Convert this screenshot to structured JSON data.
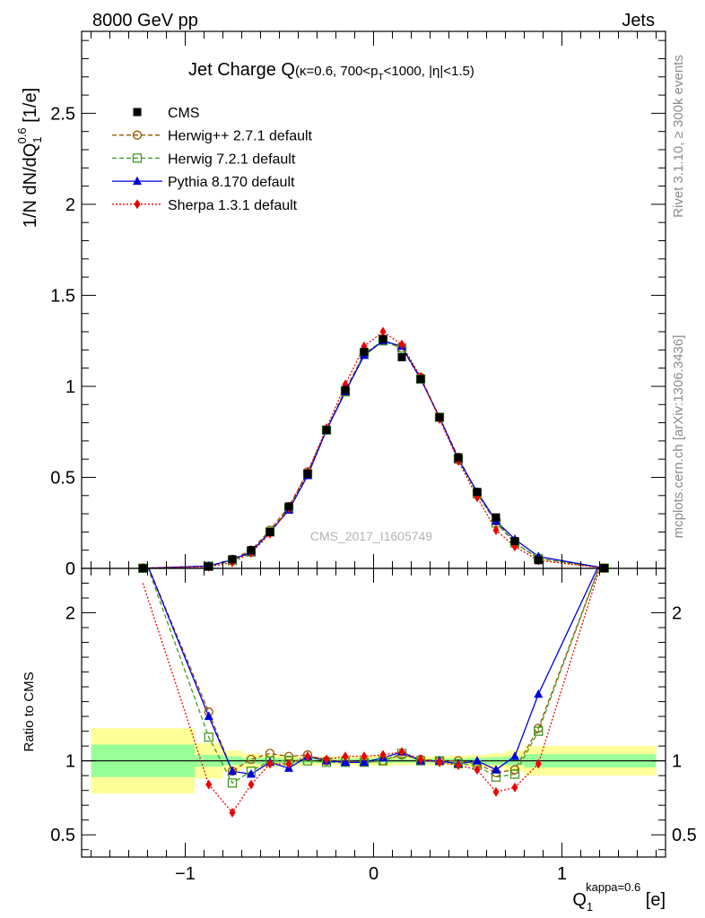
{
  "header": {
    "left": "8000 GeV pp",
    "right": "Jets"
  },
  "side_labels": {
    "rivet": "Rivet 3.1.10, ≥ 300k events",
    "mcplots": "mcplots.cern.ch [arXiv:1306.3436]"
  },
  "watermark": "CMS_2017_I1605749",
  "colors": {
    "cms": "#000000",
    "herwigpp": "#995500",
    "herwig7": "#449922",
    "pythia": "#0000dd",
    "sherpa": "#ee0000",
    "band_inner": "#99ff99",
    "band_outer": "#ffff99"
  },
  "chart_data": [
    {
      "type": "line",
      "panel": "main",
      "title": {
        "main": "Jet Charge Q",
        "sub": "(κ=0.6, 700<p",
        "sub_sub": "T",
        "sub_end": "<1000, |η|<1.5)"
      },
      "ylabel": {
        "a": "1/N dN/dQ",
        "sub": "1",
        "sup": "0.6",
        "b": " [1/e]"
      },
      "xlim": [
        -1.55,
        1.55
      ],
      "ylim": [
        0,
        2.95
      ],
      "yticks": [
        "0",
        "0.5",
        "1",
        "1.5",
        "2",
        "2.5"
      ],
      "x": [
        -1.225,
        -0.875,
        -0.75,
        -0.65,
        -0.55,
        -0.45,
        -0.35,
        -0.25,
        -0.15,
        -0.05,
        0.05,
        0.15,
        0.25,
        0.35,
        0.45,
        0.55,
        0.65,
        0.75,
        0.875,
        1.225
      ],
      "legend": [
        {
          "name": "CMS",
          "key": "cms"
        },
        {
          "name": "Herwig++ 2.7.1 default",
          "key": "herwigpp"
        },
        {
          "name": "Herwig 7.2.1 default",
          "key": "herwig7"
        },
        {
          "name": "Pythia 8.170 default",
          "key": "pythia"
        },
        {
          "name": "Sherpa 1.3.1 default",
          "key": "sherpa"
        }
      ],
      "series": [
        {
          "name": "CMS",
          "key": "cms",
          "marker": "square",
          "values": [
            0.0008,
            0.01,
            0.05,
            0.1,
            0.2,
            0.34,
            0.52,
            0.76,
            0.98,
            1.19,
            1.26,
            1.16,
            1.04,
            0.83,
            0.61,
            0.42,
            0.28,
            0.15,
            0.045,
            0.0015
          ]
        },
        {
          "name": "Herwig++ 2.7.1 default",
          "key": "herwigpp",
          "marker": "circle-open",
          "dash": "5,3",
          "values": [
            0.0009,
            0.013,
            0.05,
            0.1,
            0.21,
            0.34,
            0.53,
            0.76,
            0.98,
            1.18,
            1.25,
            1.21,
            1.05,
            0.83,
            0.61,
            0.41,
            0.26,
            0.14,
            0.055,
            0.0016
          ]
        },
        {
          "name": "Herwig 7.2.1 default",
          "key": "herwig7",
          "marker": "square-open",
          "dash": "5,3",
          "values": [
            0.0008,
            0.012,
            0.043,
            0.09,
            0.2,
            0.33,
            0.52,
            0.76,
            0.97,
            1.18,
            1.25,
            1.21,
            1.04,
            0.83,
            0.6,
            0.41,
            0.25,
            0.14,
            0.054,
            0.0015
          ]
        },
        {
          "name": "Pythia 8.170 default",
          "key": "pythia",
          "marker": "triangle",
          "values": [
            0.0006,
            0.013,
            0.047,
            0.091,
            0.2,
            0.32,
            0.51,
            0.76,
            0.97,
            1.17,
            1.25,
            1.22,
            1.04,
            0.83,
            0.6,
            0.42,
            0.26,
            0.16,
            0.065,
            0.0015
          ]
        },
        {
          "name": "Sherpa 1.3.1 default",
          "key": "sherpa",
          "marker": "diamond",
          "dash": "2,2",
          "values": [
            0.0018,
            0.008,
            0.033,
            0.085,
            0.19,
            0.33,
            0.53,
            0.77,
            1.01,
            1.22,
            1.3,
            1.23,
            1.05,
            0.82,
            0.59,
            0.39,
            0.21,
            0.12,
            0.044,
            0.0012
          ]
        }
      ]
    },
    {
      "type": "line",
      "panel": "ratio",
      "ylabel": "Ratio to CMS",
      "xlabel": {
        "a": "Q",
        "sub": "1",
        "sup": "kappa=0.6",
        "b": " [e]"
      },
      "xlim": [
        -1.55,
        1.55
      ],
      "ylim": [
        0.35,
        2.3
      ],
      "yticks": [
        "0.5",
        "1",
        "2"
      ],
      "xticks": [
        "−1",
        "0",
        "1"
      ],
      "x": [
        -0.875,
        -0.75,
        -0.65,
        -0.55,
        -0.45,
        -0.35,
        -0.25,
        -0.15,
        -0.05,
        0.05,
        0.15,
        0.25,
        0.35,
        0.45,
        0.55,
        0.65,
        0.75,
        0.875
      ],
      "band_bins": [
        -1.5,
        -0.95,
        -0.8,
        -0.7,
        -0.6,
        -0.5,
        -0.4,
        -0.3,
        -0.2,
        -0.1,
        0.0,
        0.1,
        0.2,
        0.3,
        0.4,
        0.5,
        0.6,
        0.7,
        0.8,
        0.95,
        1.5
      ],
      "band_inner_half": [
        0.11,
        0.04,
        0.03,
        0.02,
        0.02,
        0.015,
        0.015,
        0.012,
        0.012,
        0.015,
        0.015,
        0.012,
        0.012,
        0.015,
        0.015,
        0.02,
        0.025,
        0.03,
        0.045,
        0.045
      ],
      "band_outer_half": [
        0.22,
        0.12,
        0.07,
        0.05,
        0.04,
        0.035,
        0.03,
        0.028,
        0.03,
        0.035,
        0.035,
        0.03,
        0.028,
        0.03,
        0.035,
        0.04,
        0.05,
        0.07,
        0.1,
        0.1
      ],
      "series": [
        {
          "name": "Herwig++ 2.7.1 default",
          "key": "herwigpp",
          "marker": "circle-open",
          "dash": "5,3",
          "edges": [
            [
              -1.225,
              2.4
            ],
            [
              1.225,
              2.4
            ]
          ],
          "values": [
            1.33,
            0.93,
            1.01,
            1.05,
            1.03,
            1.04,
            1.0,
            1.0,
            0.99,
            1.0,
            1.04,
            1.01,
            1.0,
            1.0,
            0.98,
            0.92,
            0.94,
            1.22
          ]
        },
        {
          "name": "Herwig 7.2.1 default",
          "key": "herwig7",
          "marker": "square-open",
          "dash": "5,3",
          "edges": [
            [
              -1.225,
              2.4
            ],
            [
              1.225,
              2.4
            ]
          ],
          "values": [
            1.16,
            0.85,
            0.93,
            1.0,
            1.0,
            1.0,
            0.99,
            0.99,
            0.99,
            1.0,
            1.05,
            1.0,
            1.0,
            0.98,
            0.97,
            0.89,
            0.91,
            1.2
          ]
        },
        {
          "name": "Pythia 8.170 default",
          "key": "pythia",
          "marker": "triangle",
          "edges": [
            [
              -1.225,
              2.4
            ],
            [
              1.225,
              2.4
            ]
          ],
          "values": [
            1.3,
            0.93,
            0.91,
            0.99,
            0.95,
            1.03,
            1.0,
            0.99,
            0.99,
            1.02,
            1.06,
            1.0,
            1.0,
            0.98,
            1.0,
            0.94,
            1.03,
            1.45
          ]
        },
        {
          "name": "Sherpa 1.3.1 default",
          "key": "sherpa",
          "marker": "diamond",
          "dash": "2,2",
          "edges": [
            [
              -1.225,
              2.2
            ],
            [
              1.225,
              2.4
            ]
          ],
          "values": [
            0.84,
            0.65,
            0.84,
            0.98,
            0.98,
            1.03,
            1.01,
            1.03,
            1.03,
            1.04,
            1.06,
            1.01,
            0.99,
            0.97,
            0.94,
            0.79,
            0.82,
            0.98
          ]
        }
      ]
    }
  ]
}
